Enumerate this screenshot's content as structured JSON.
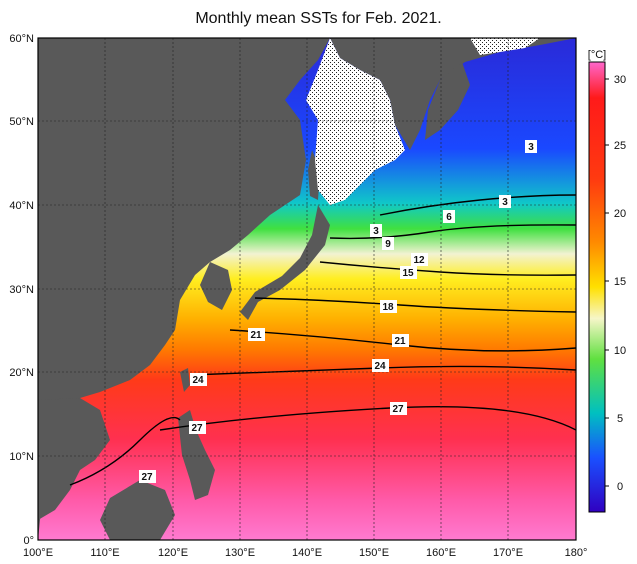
{
  "title": "Monthly mean SSTs for Feb. 2021.",
  "map": {
    "lon_range": [
      100,
      180
    ],
    "lat_range": [
      0,
      60
    ],
    "lon_ticks": [
      "100°E",
      "110°E",
      "120°E",
      "130°E",
      "140°E",
      "150°E",
      "160°E",
      "170°E",
      "180°"
    ],
    "lat_ticks": [
      "0°",
      "10°N",
      "20°N",
      "30°N",
      "40°N",
      "50°N",
      "60°N"
    ],
    "land_color": "#595959",
    "sea_ice": "hatched"
  },
  "colorbar": {
    "unit": "[°C]",
    "range": [
      -2,
      31
    ],
    "ticks": [
      "0",
      "5",
      "10",
      "15",
      "20",
      "25",
      "30"
    ],
    "colors": [
      "#3a00c8",
      "#0050ff",
      "#00b8ff",
      "#00e080",
      "#80ff40",
      "#ffffc8",
      "#ffff00",
      "#ffb000",
      "#ff3000",
      "#ff80c8"
    ]
  },
  "contour_labels": [
    "3",
    "3",
    "3",
    "6",
    "9",
    "12",
    "15",
    "18",
    "21",
    "21",
    "24",
    "24",
    "27",
    "27",
    "27"
  ]
}
